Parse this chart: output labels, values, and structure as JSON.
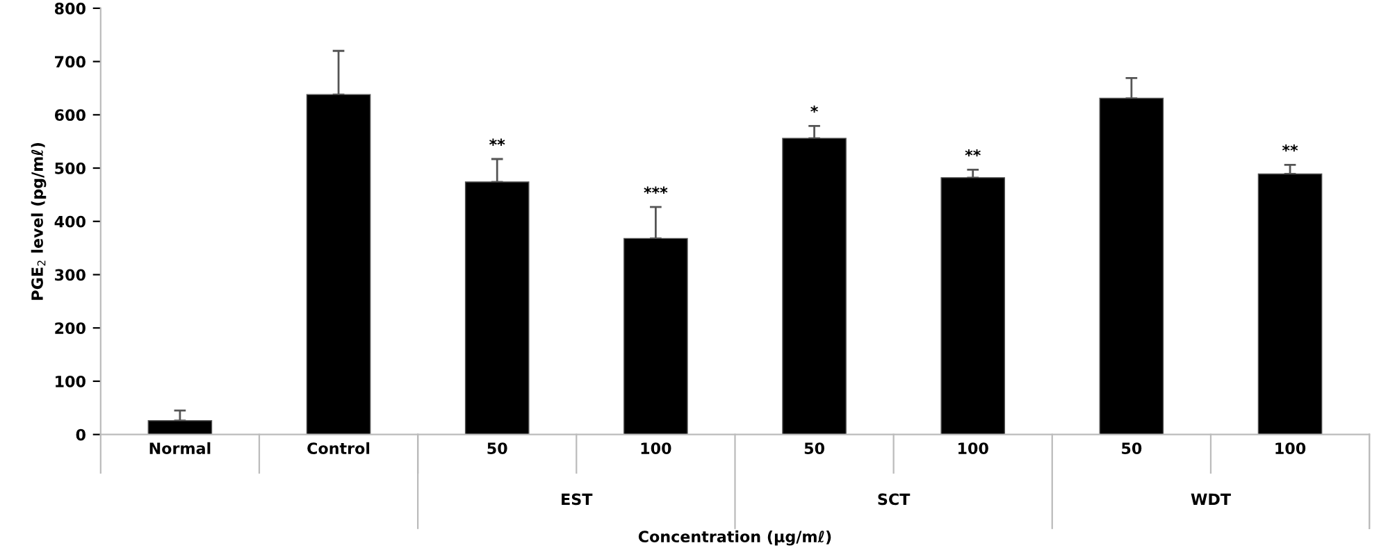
{
  "chart_data": {
    "type": "bar",
    "xlabel": "Concentration (μg/mℓ)",
    "ylabel": "PGE$_{2}$ level (pg/mℓ)",
    "categories": [
      "Normal",
      "Control",
      "50",
      "100",
      "50",
      "100",
      "50",
      "100"
    ],
    "values": [
      26,
      638,
      474,
      368,
      556,
      482,
      631,
      489
    ],
    "errors": [
      [
        26,
        45
      ],
      [
        638,
        720
      ],
      [
        474,
        517
      ],
      [
        368,
        427
      ],
      [
        556,
        579
      ],
      [
        482,
        497
      ],
      [
        631,
        669
      ],
      [
        489,
        506
      ]
    ],
    "value_labels": [
      null,
      null,
      "**",
      "***",
      "*",
      "**",
      null,
      "**"
    ],
    "color": "#000000",
    "annotations": [
      "EST",
      "SCT",
      "WDT"
    ],
    "ylim": [
      0,
      800
    ],
    "yticks": [
      0,
      100,
      200,
      300,
      400,
      500,
      600,
      700,
      800
    ],
    "grid": false
  }
}
